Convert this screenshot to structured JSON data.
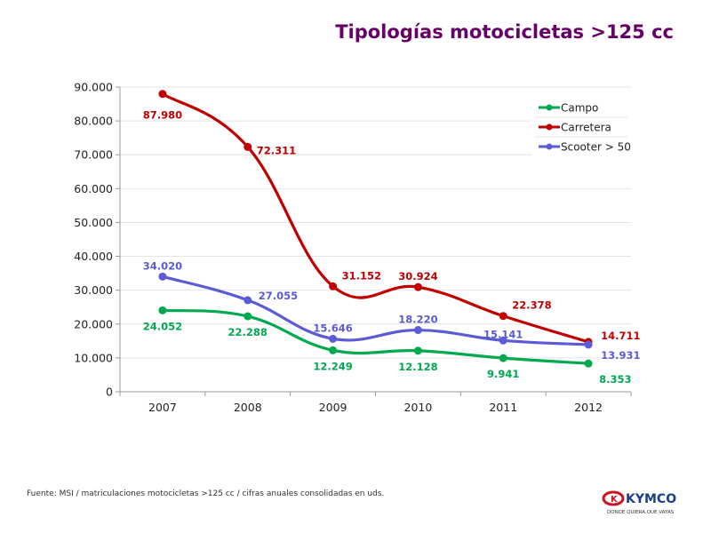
{
  "page": {
    "title": "Tipologías motocicletas >125 cc",
    "source_note": "Fuente: MSI / matriculaciones motocicletas >125 cc / cifras anuales consolidadas en uds.",
    "logo": {
      "brand": "KYMCO",
      "tagline": "DONDE QUIERA QUE VAYAS",
      "color_red": "#cc1122",
      "color_blue": "#1a3d8f"
    }
  },
  "chart_data": {
    "type": "line",
    "title": "Tipologías motocicletas >125 cc",
    "xlabel": "",
    "ylabel": "",
    "categories": [
      "2007",
      "2008",
      "2009",
      "2010",
      "2011",
      "2012"
    ],
    "ylim": [
      0,
      90000
    ],
    "yticks": [
      0,
      10000,
      20000,
      30000,
      40000,
      50000,
      60000,
      70000,
      80000,
      90000
    ],
    "ytick_labels": [
      "0",
      "10.000",
      "20.000",
      "30.000",
      "40.000",
      "50.000",
      "60.000",
      "70.000",
      "80.000",
      "90.000"
    ],
    "grid": true,
    "smooth": true,
    "legend_position": "top-right",
    "series": [
      {
        "name": "Campo",
        "color": "#00a94f",
        "values": [
          24052,
          22288,
          12249,
          12128,
          9941,
          8353
        ],
        "labels": [
          "24.052",
          "22.288",
          "12.249",
          "12.128",
          "9.941",
          "8.353"
        ],
        "label_position": "below"
      },
      {
        "name": "Carretera",
        "color": "#c00000",
        "values": [
          87980,
          72311,
          31152,
          30924,
          22378,
          14711
        ],
        "labels": [
          "87.980",
          "72.311",
          "31.152",
          "30.924",
          "22.378",
          "14.711"
        ],
        "label_position": "mixed"
      },
      {
        "name": "Scooter > 50",
        "color": "#5b5bd6",
        "values": [
          34020,
          27055,
          15646,
          18220,
          15141,
          13931
        ],
        "labels": [
          "34.020",
          "27.055",
          "15.646",
          "18.220",
          "15.141",
          "13.931"
        ],
        "label_position": "above"
      }
    ]
  }
}
